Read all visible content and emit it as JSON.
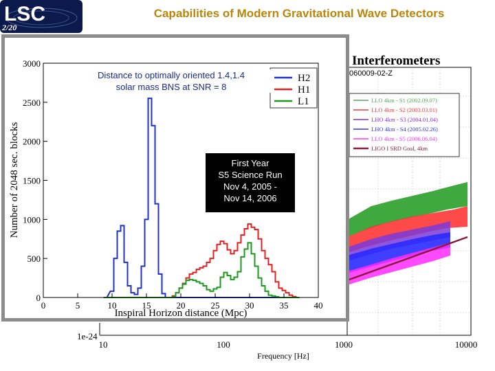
{
  "logo": {
    "text": "LSC",
    "page": "2/20"
  },
  "title": "Capabilities of Modern Gravitational Wave Detectors",
  "background_plot": {
    "title_fragment": "Interferometers",
    "doc_id": "060009-02-Z",
    "legend": [
      {
        "label": "LLO 4km - S1 (2002.09.07)",
        "color": "#55aa55"
      },
      {
        "label": "LLO 4km - S2 (2003.03.01)",
        "color": "#ff3333"
      },
      {
        "label": "LHO 4km - S3 (2004.01.04)",
        "color": "#8a2be2"
      },
      {
        "label": "LHO 4km - S4 (2005.02.26)",
        "color": "#3333ff"
      },
      {
        "label": "LLO 4km - S5 (2006.06.04)",
        "color": "#ff33ff"
      },
      {
        "label": "LIGO I SRD Goal, 4km",
        "color": "#8b1a3a"
      }
    ],
    "y_min_label": "1e-24",
    "x_ticks": [
      "10",
      "100",
      "1000",
      "10000"
    ],
    "xlabel": "Frequency [Hz]"
  },
  "annotation": {
    "line1": "Distance to optimally oriented 1.4,1.4",
    "line2": "solar mass BNS at SNR = 8"
  },
  "black_box": [
    "First Year",
    "S5 Science Run",
    "Nov 4, 2005 -",
    "Nov 14, 2006"
  ],
  "chart_data": {
    "type": "line",
    "xlabel": "Inspiral Horizon distance (Mpc)",
    "ylabel": "Number of 2048 sec. blocks",
    "xlim": [
      0,
      40
    ],
    "ylim": [
      0,
      3000
    ],
    "x_ticks": [
      0,
      5,
      10,
      15,
      20,
      25,
      30,
      35,
      40
    ],
    "y_ticks": [
      0,
      500,
      1000,
      1500,
      2000,
      2500,
      3000
    ],
    "x": [
      9,
      10,
      10.5,
      11,
      11.5,
      12,
      12.5,
      13,
      13.5,
      14,
      14.5,
      15,
      15.5,
      16,
      16.5,
      17,
      17.5,
      18,
      18.5,
      19,
      19.5,
      20,
      20.5,
      21,
      21.5,
      22,
      22.5,
      23,
      23.5,
      24,
      24.5,
      25,
      25.5,
      26,
      26.5,
      27,
      27.5,
      28,
      28.5,
      29,
      29.5,
      30,
      30.5,
      31,
      31.5,
      32,
      32.5,
      33,
      33.5,
      34,
      34.5,
      35,
      35.5,
      36,
      36.5,
      37
    ],
    "series": [
      {
        "name": "H2",
        "color": "#1f2fd0",
        "values": [
          0,
          80,
          500,
          850,
          920,
          450,
          150,
          60,
          40,
          120,
          400,
          1000,
          2550,
          2200,
          1200,
          300,
          50,
          0,
          0,
          0,
          0,
          0,
          0,
          0,
          0,
          0,
          0,
          0,
          0,
          0,
          0,
          0,
          0,
          0,
          0,
          0,
          0,
          0,
          0,
          0,
          0,
          0,
          0,
          0,
          0,
          0,
          0,
          0,
          0,
          0,
          0,
          0,
          0,
          0,
          0,
          0
        ]
      },
      {
        "name": "H1",
        "color": "#e02020",
        "values": [
          0,
          0,
          0,
          0,
          0,
          0,
          0,
          0,
          0,
          0,
          0,
          0,
          0,
          0,
          0,
          0,
          0,
          0,
          0,
          20,
          60,
          120,
          180,
          250,
          300,
          320,
          360,
          380,
          400,
          450,
          500,
          600,
          680,
          720,
          690,
          610,
          560,
          600,
          700,
          800,
          880,
          940,
          900,
          870,
          750,
          600,
          500,
          420,
          330,
          200,
          120,
          90,
          60,
          30,
          10,
          0
        ]
      },
      {
        "name": "L1",
        "color": "#1a9a1a",
        "values": [
          0,
          0,
          0,
          0,
          0,
          0,
          0,
          0,
          0,
          0,
          0,
          0,
          0,
          0,
          0,
          0,
          0,
          0,
          0,
          10,
          60,
          120,
          170,
          220,
          230,
          220,
          200,
          180,
          150,
          100,
          80,
          110,
          130,
          260,
          320,
          280,
          230,
          260,
          330,
          520,
          620,
          700,
          560,
          400,
          250,
          150,
          80,
          30,
          20,
          10,
          0,
          0,
          0,
          0,
          0,
          0
        ]
      }
    ]
  }
}
